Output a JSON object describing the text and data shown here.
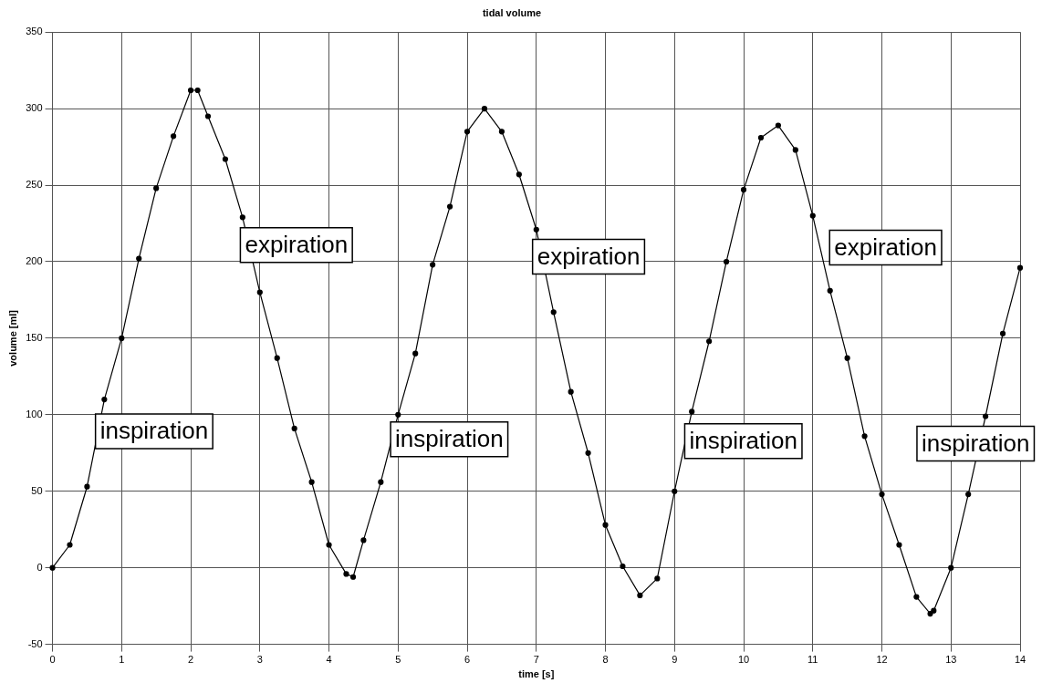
{
  "chart_data": {
    "type": "line",
    "title": "tidal volume",
    "xlabel": "time [s]",
    "ylabel": "volume [ml]",
    "x": [
      0,
      0.25,
      0.5,
      0.75,
      1,
      1.25,
      1.5,
      1.75,
      2,
      2.1,
      2.25,
      2.5,
      2.75,
      3,
      3.25,
      3.5,
      3.75,
      4,
      4.25,
      4.35,
      4.5,
      4.75,
      5,
      5.25,
      5.5,
      5.75,
      6,
      6.25,
      6.5,
      6.75,
      7,
      7.25,
      7.5,
      7.75,
      8,
      8.25,
      8.5,
      8.75,
      9,
      9.25,
      9.5,
      9.75,
      10,
      10.25,
      10.5,
      10.75,
      11,
      11.25,
      11.5,
      11.75,
      12,
      12.25,
      12.5,
      12.7,
      12.75,
      13,
      13.25,
      13.5,
      13.75,
      14
    ],
    "series": [
      {
        "color": "#000000",
        "values": [
          0,
          15,
          53,
          110,
          150,
          202,
          248,
          282,
          312,
          312,
          295,
          267,
          229,
          180,
          137,
          91,
          56,
          15,
          -4,
          -6,
          18,
          56,
          100,
          140,
          198,
          236,
          285,
          300,
          285,
          257,
          221,
          167,
          115,
          75,
          28,
          1,
          -18,
          -7,
          50,
          102,
          148,
          200,
          247,
          281,
          289,
          273,
          230,
          181,
          137,
          86,
          48,
          15,
          -19,
          -30,
          -28,
          0,
          48,
          99,
          153,
          196
        ]
      }
    ],
    "xlim": [
      0,
      14
    ],
    "xticks": [
      0,
      1,
      2,
      3,
      4,
      5,
      6,
      7,
      8,
      9,
      10,
      11,
      12,
      13,
      14
    ],
    "ylim": [
      -50,
      350
    ],
    "yticks": [
      -50,
      0,
      50,
      100,
      150,
      200,
      250,
      300,
      350
    ],
    "grid": true,
    "legend": false,
    "marker": "circle",
    "line_style": "solid",
    "annotations": [
      "inspiration",
      "expiration",
      "inspiration",
      "expiration",
      "inspiration",
      "expiration",
      "inspiration"
    ]
  }
}
